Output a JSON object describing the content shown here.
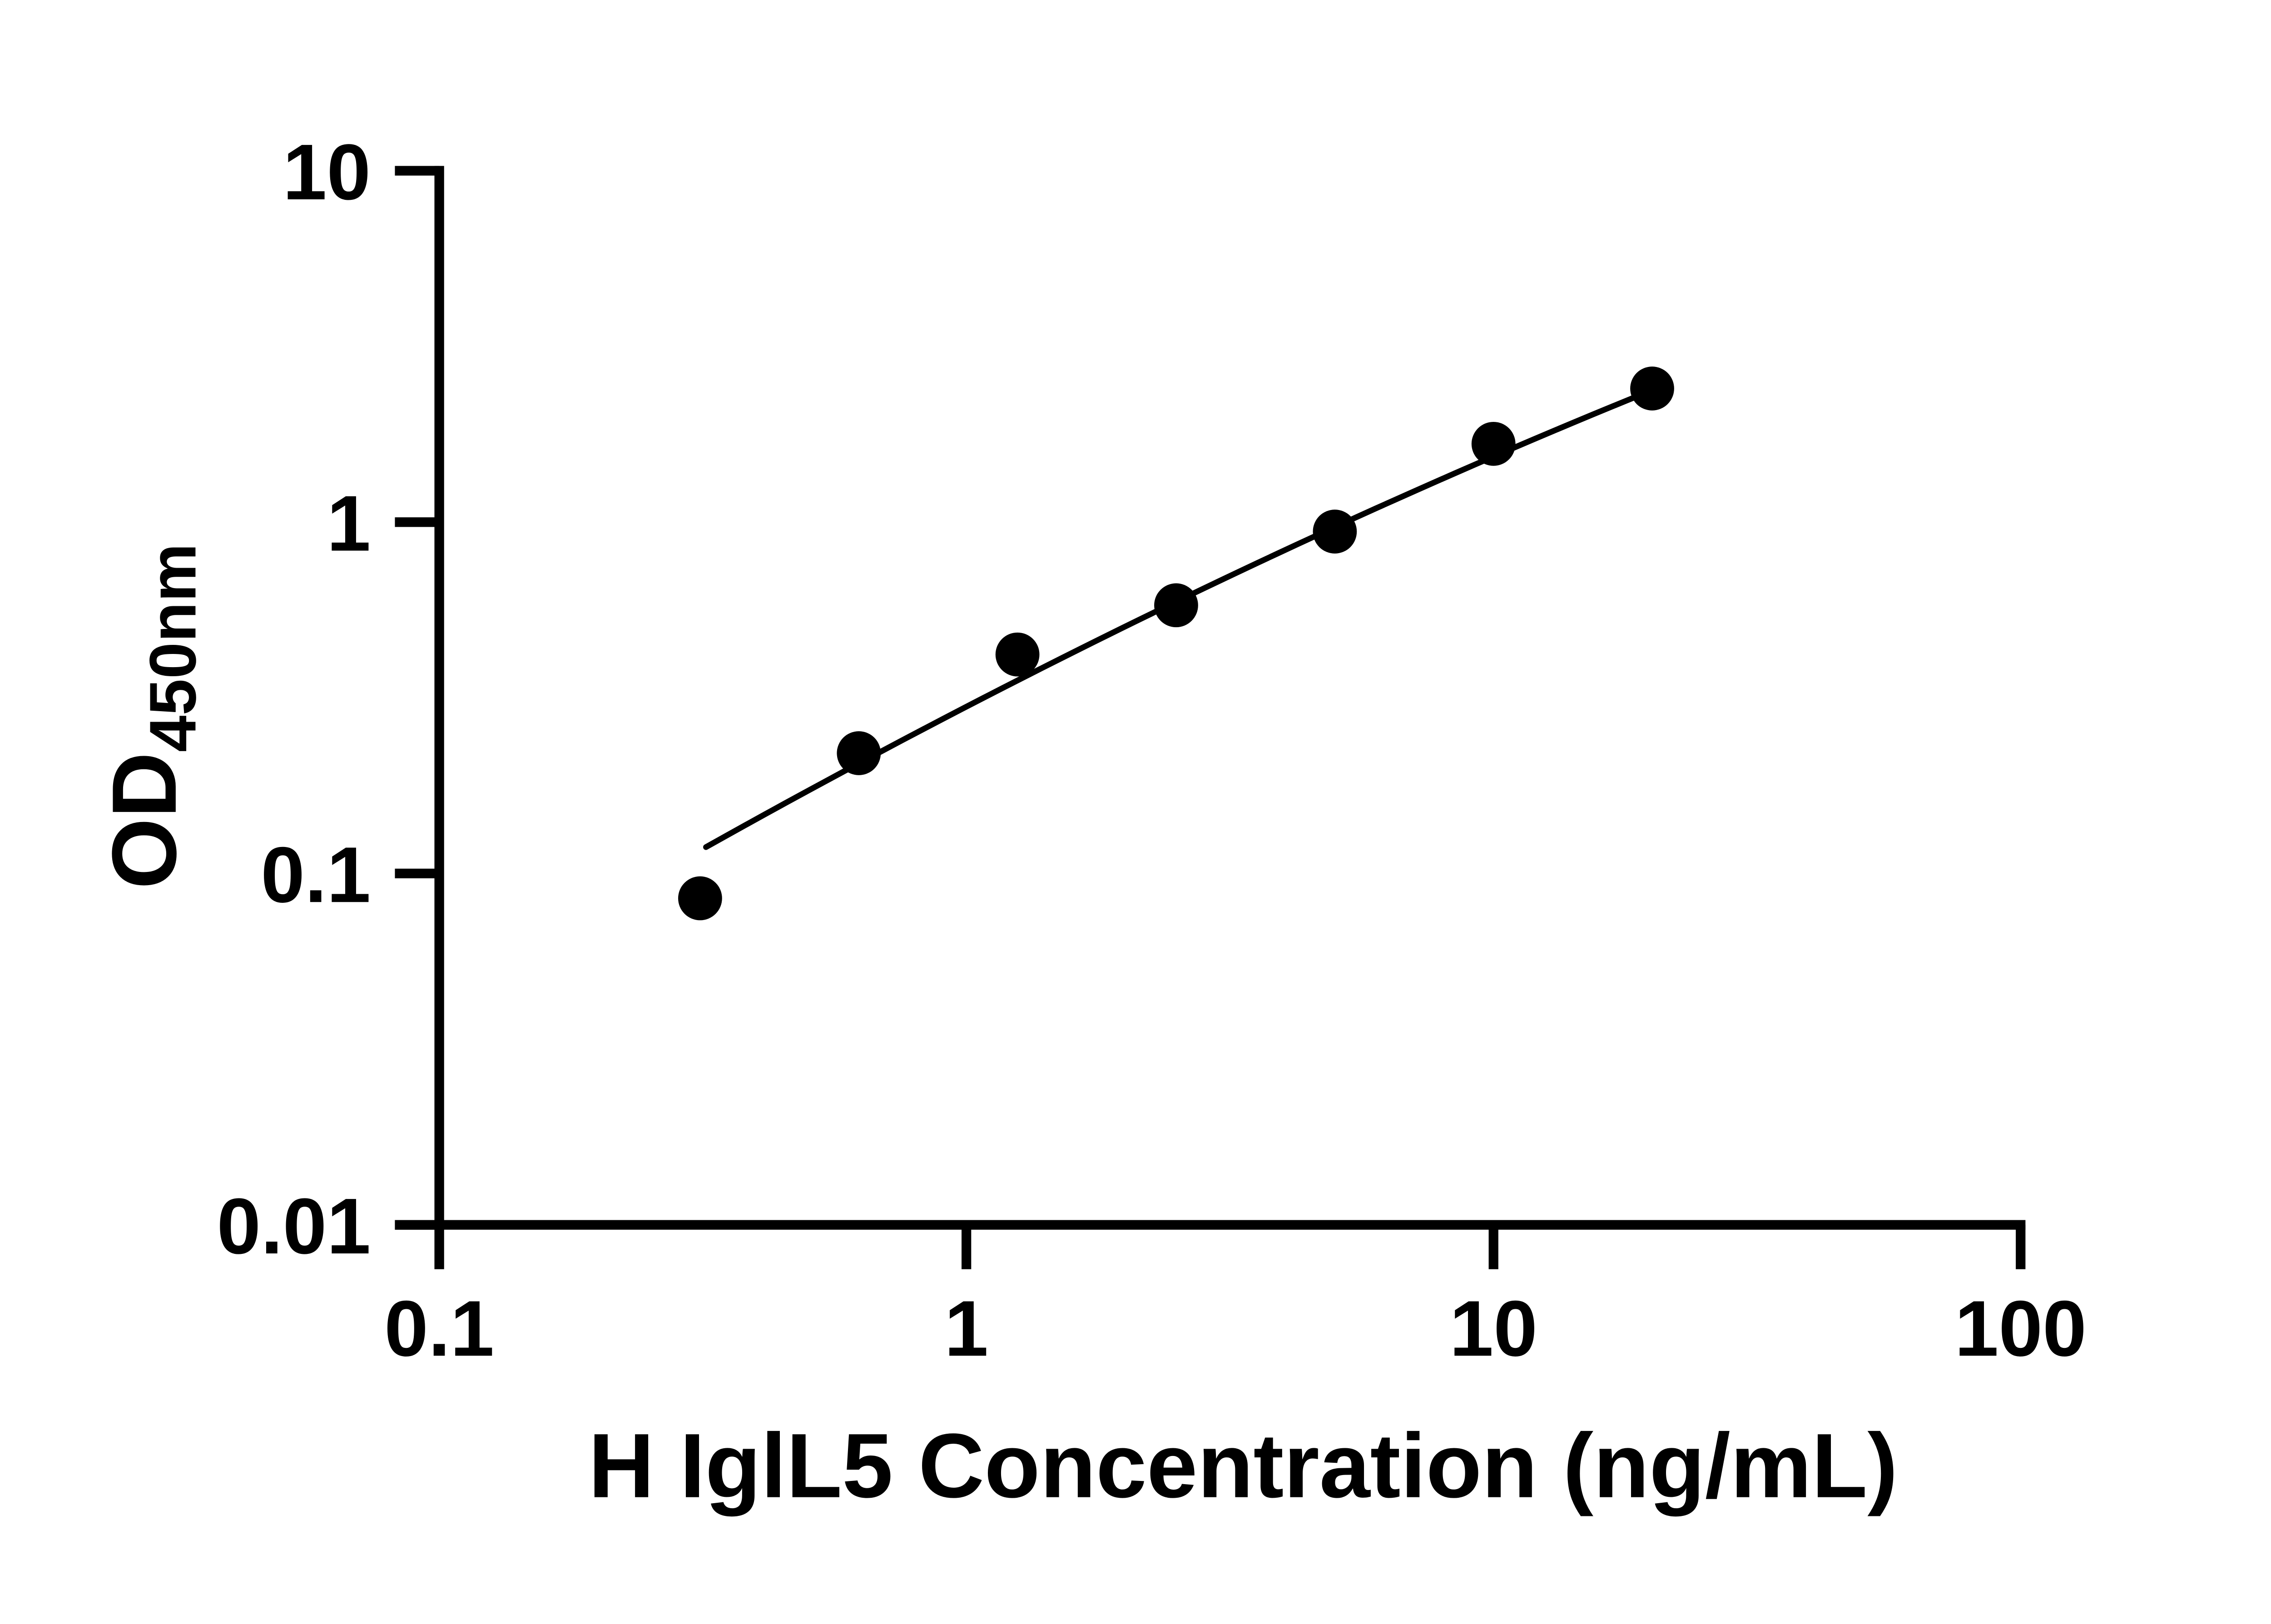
{
  "chart_data": {
    "type": "scatter",
    "title": "",
    "xlabel": "H IglL5 Concentration (ng/mL)",
    "ylabel_main": "OD",
    "ylabel_sub": "450nm",
    "x_scale": "log10",
    "y_scale": "log10",
    "xlim": [
      0.1,
      100
    ],
    "ylim": [
      0.01,
      10
    ],
    "grid": false,
    "legend": false,
    "background_color": "#ffffff",
    "axis_color": "#000000",
    "marker_color": "#000000",
    "curve_color": "#000000",
    "x_ticks": [
      {
        "value": 0.1,
        "label": "0.1"
      },
      {
        "value": 1,
        "label": "1"
      },
      {
        "value": 10,
        "label": "10"
      },
      {
        "value": 100,
        "label": "100"
      }
    ],
    "y_ticks": [
      {
        "value": 10,
        "label": "10"
      },
      {
        "value": 1,
        "label": "1"
      },
      {
        "value": 0.1,
        "label": "0.1"
      },
      {
        "value": 0.01,
        "label": "0.01"
      }
    ],
    "series": [
      {
        "name": "standard-curve-points",
        "marker": "filled-circle",
        "points": [
          {
            "x": 0.3125,
            "y": 0.085
          },
          {
            "x": 0.625,
            "y": 0.22
          },
          {
            "x": 1.25,
            "y": 0.42
          },
          {
            "x": 2.5,
            "y": 0.58
          },
          {
            "x": 5,
            "y": 0.94
          },
          {
            "x": 10,
            "y": 1.67
          },
          {
            "x": 20,
            "y": 2.4
          }
        ]
      }
    ],
    "fit_curve": {
      "model": "quadratic-in-loglog",
      "coeffs": {
        "a": -0.5253,
        "b": 0.7768,
        "c": -0.0648
      },
      "log10x_start": -0.494,
      "log10x_end": 1.301
    }
  }
}
